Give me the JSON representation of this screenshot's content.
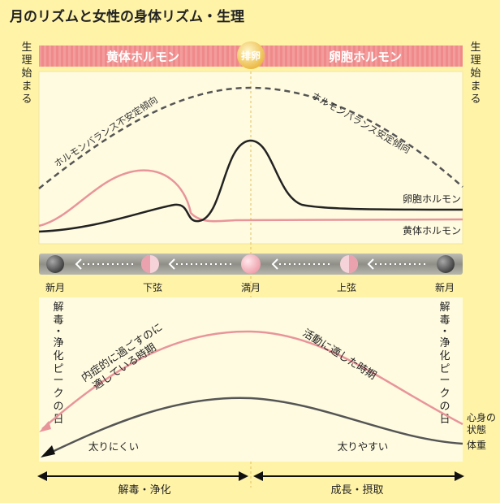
{
  "title": "月のリズムと女性の身体リズム・生理",
  "hormone_band": {
    "left_label": "黄体ホルモン",
    "center_label": "排卵",
    "right_label": "卵胞ホルモン"
  },
  "side_labels": {
    "left": [
      "生",
      "理",
      "始",
      "ま",
      "る"
    ],
    "right": [
      "生",
      "理",
      "始",
      "ま",
      "る"
    ]
  },
  "hormone_chart": {
    "curves": [
      {
        "name": "ホルモンバランス不安定傾向",
        "label": "ホルモンバランス不安定傾向",
        "style": "dashed",
        "color": "#555555"
      },
      {
        "name": "ホルモンバランス安定傾向",
        "label": "ホルモンバランス安定傾向",
        "style": "dashed",
        "color": "#555555"
      },
      {
        "name": "卵胞ホルモン",
        "label": "卵胞ホルモン",
        "style": "solid",
        "color": "#222222"
      },
      {
        "name": "黄体ホルモン",
        "label": "黄体ホルモン",
        "style": "solid",
        "color": "#e8959a"
      }
    ]
  },
  "moon_phases": [
    {
      "label": "新月",
      "phase": "new"
    },
    {
      "label": "下弦",
      "phase": "last-quarter"
    },
    {
      "label": "満月",
      "phase": "full"
    },
    {
      "label": "上弦",
      "phase": "first-quarter"
    },
    {
      "label": "新月",
      "phase": "new"
    }
  ],
  "body_chart": {
    "left_side": [
      "解",
      "毒",
      "・",
      "浄",
      "化",
      "ピ",
      "ー",
      "ク",
      "の",
      "日"
    ],
    "right_side": [
      "解",
      "毒",
      "・",
      "浄",
      "化",
      "ピ",
      "ー",
      "ク",
      "の",
      "日"
    ],
    "curve_label_left_1": "内症的に過ごすのに",
    "curve_label_left_2": "適している時期",
    "curve_label_right": "活動に適した時期",
    "weight_left": "太りにくい",
    "weight_right": "太りやすい",
    "legend_condition_1": "心身の",
    "legend_condition_2": "状態",
    "legend_weight": "体重"
  },
  "phases_bottom": {
    "left": "解毒・浄化",
    "right": "成長・摂取"
  },
  "colors": {
    "background": "#fff3a8",
    "panel": "#fffbe0",
    "band": "#f08a8a",
    "pink": "#e8959a",
    "dark": "#222222",
    "dashed": "#555555",
    "ovulation": "#f2c24b"
  }
}
